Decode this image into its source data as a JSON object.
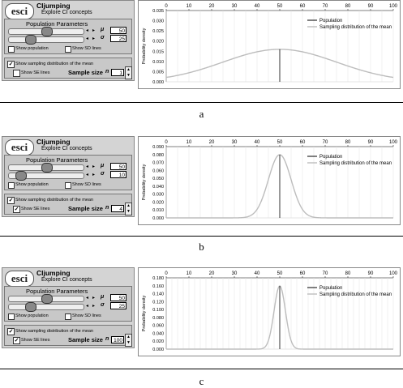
{
  "app": {
    "logo": "esci",
    "name": "CIjumping",
    "subtitle": "Explore CI concepts"
  },
  "labels": {
    "population_parameters": "Population Parameters",
    "mu_symbol": "μ",
    "sigma_symbol": "σ",
    "show_population": "Show population",
    "show_sd_lines": "Show SD lines",
    "show_sampling": "Show sampling distribution of the mean",
    "show_se_lines": "Show SE lines",
    "sample_size": "Sample size",
    "n_symbol": "n",
    "y_axis": "Probability density",
    "legend_population": "Population",
    "legend_sampling": "Sampling distribution of the mean"
  },
  "x_ticks": [
    "0",
    "10",
    "20",
    "30",
    "40",
    "50",
    "60",
    "70",
    "80",
    "90",
    "100"
  ],
  "panels": [
    {
      "caption": "a",
      "mu": "50",
      "sigma": "25",
      "n": "1",
      "se_lines": false,
      "mu_thumb": 0.5,
      "sigma_thumb": 0.25,
      "show_population": false,
      "show_sd_lines": false,
      "show_sampling": true,
      "y_ticks": [
        "0.035",
        "0.030",
        "0.025",
        "0.020",
        "0.015",
        "0.010",
        "0.005",
        "0.000"
      ],
      "y_max": 0.035
    },
    {
      "caption": "b",
      "mu": "50",
      "sigma": "10",
      "n": "4",
      "se_lines": true,
      "mu_thumb": 0.5,
      "sigma_thumb": 0.1,
      "show_population": false,
      "show_sd_lines": false,
      "show_sampling": true,
      "y_ticks": [
        "0.090",
        "0.080",
        "0.070",
        "0.060",
        "0.050",
        "0.040",
        "0.030",
        "0.020",
        "0.010",
        "0.000"
      ],
      "y_max": 0.09
    },
    {
      "caption": "c",
      "mu": "50",
      "sigma": "25",
      "n": "100",
      "se_lines": true,
      "mu_thumb": 0.5,
      "sigma_thumb": 0.25,
      "show_population": false,
      "show_sd_lines": false,
      "show_sampling": true,
      "y_ticks": [
        "0.180",
        "0.160",
        "0.140",
        "0.120",
        "0.100",
        "0.080",
        "0.060",
        "0.040",
        "0.020",
        "0.000"
      ],
      "y_max": 0.18
    }
  ]
}
